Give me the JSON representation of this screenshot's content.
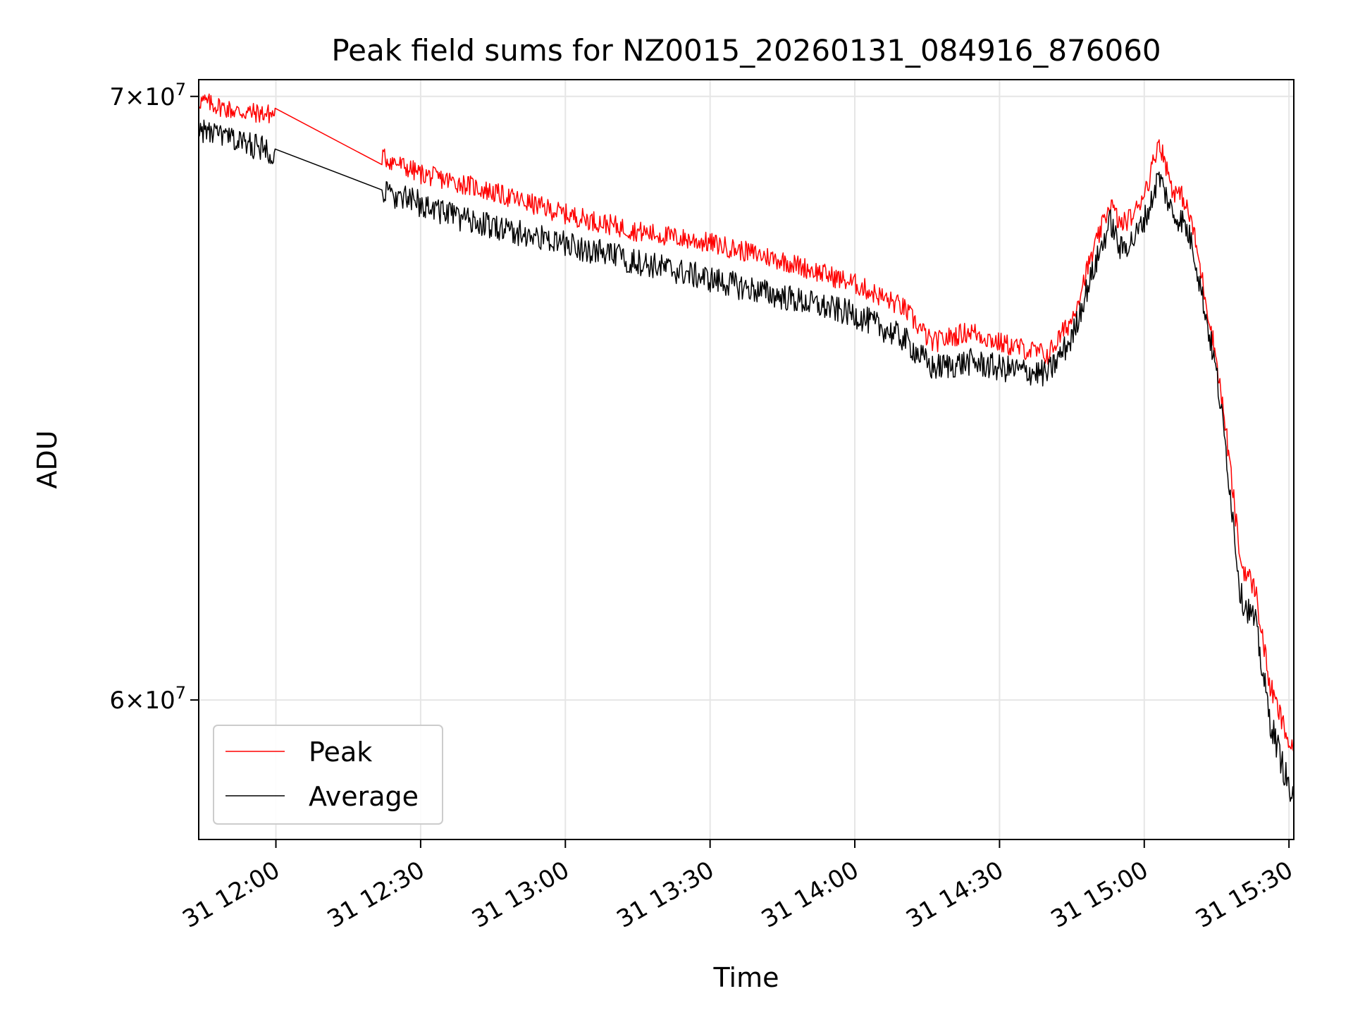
{
  "chart_data": {
    "type": "line",
    "title": "Peak field sums for NZ0015_20260131_084916_876060",
    "xlabel": "Time",
    "ylabel": "ADU",
    "yscale": "log",
    "ylim": [
      57900000,
      70300000
    ],
    "xlim": [
      "11:44",
      "15:31"
    ],
    "grid": true,
    "legend_position": "lower-left",
    "x_ticks": [
      "31 12:00",
      "31 12:30",
      "31 13:00",
      "31 13:30",
      "31 14:00",
      "31 14:30",
      "31 15:00",
      "31 15:30"
    ],
    "y_ticks": [
      {
        "value": 70000000,
        "mantissa": "7",
        "base": "10",
        "exponent": "7"
      },
      {
        "value": 60000000,
        "mantissa": "6",
        "base": "10",
        "exponent": "7"
      }
    ],
    "x": [
      "11:44",
      "11:52",
      "12:00",
      "12:22",
      "12:30",
      "12:40",
      "13:00",
      "13:15",
      "13:30",
      "13:45",
      "14:00",
      "14:10",
      "14:16",
      "14:24",
      "14:30",
      "14:40",
      "14:45",
      "14:48",
      "14:53",
      "14:55",
      "14:58",
      "15:01",
      "15:03",
      "15:06",
      "15:08",
      "15:10",
      "15:15",
      "15:17",
      "15:20",
      "15:23",
      "15:26",
      "15:31"
    ],
    "series": [
      {
        "name": "Peak",
        "color": "#ff0000",
        "values": [
          70000000,
          69800000,
          69750000,
          69000000,
          68700000,
          68500000,
          68000000,
          67700000,
          67500000,
          67200000,
          66800000,
          66400000,
          65800000,
          66000000,
          65800000,
          65600000,
          66200000,
          67000000,
          68200000,
          67800000,
          68000000,
          68600000,
          69300000,
          68400000,
          68300000,
          67800000,
          65500000,
          64300000,
          62200000,
          61800000,
          60300000,
          59200000
        ]
      },
      {
        "name": "Average",
        "color": "#000000",
        "values": [
          69500000,
          69300000,
          69100000,
          68400000,
          68200000,
          67900000,
          67500000,
          67200000,
          66900000,
          66600000,
          66300000,
          65900000,
          65400000,
          65500000,
          65400000,
          65300000,
          65900000,
          66700000,
          67900000,
          67400000,
          67600000,
          68100000,
          68700000,
          68000000,
          67900000,
          67500000,
          65300000,
          64000000,
          61700000,
          61300000,
          59800000,
          58500000
        ]
      }
    ]
  }
}
